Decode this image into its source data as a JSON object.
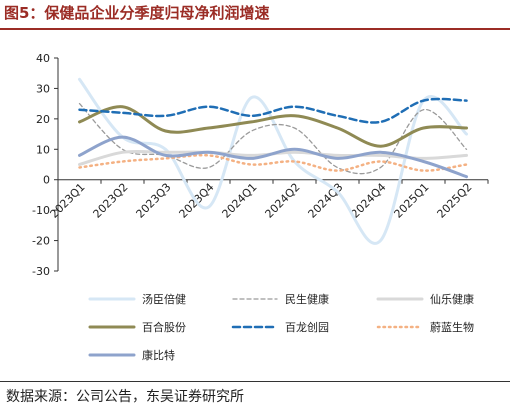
{
  "title": "图5：保健品企业分季度归母净利润增速",
  "source": "数据来源：公司公告，东吴证券研究所",
  "chart_data": {
    "type": "line",
    "title": "图5：保健品企业分季度归母净利润增速",
    "xlabel": "",
    "ylabel": "",
    "ylim": [
      -30,
      40
    ],
    "yticks": [
      -30,
      -20,
      -10,
      0,
      10,
      20,
      30,
      40
    ],
    "grid": false,
    "legend_position": "bottom",
    "categories": [
      "2023Q1",
      "2023Q2",
      "2023Q3",
      "2023Q4",
      "2024Q1",
      "2024Q2",
      "2024Q3",
      "2024Q4",
      "2025Q1",
      "2025Q2"
    ],
    "series": [
      {
        "name": "汤臣倍健",
        "color": "#d6e7f5",
        "style": "solid",
        "width": 3,
        "smooth": true,
        "values": [
          33,
          14,
          10,
          -9,
          27,
          6,
          -4,
          -20,
          26,
          15
        ]
      },
      {
        "name": "民生健康",
        "color": "#9a9a9a",
        "style": "dashed",
        "width": 1.3,
        "smooth": true,
        "values": [
          25,
          10,
          8,
          4,
          16,
          17,
          4,
          4,
          23,
          10
        ]
      },
      {
        "name": "仙乐健康",
        "color": "#d9d9d9",
        "style": "solid",
        "width": 3,
        "smooth": true,
        "values": [
          5,
          9,
          9,
          9,
          8,
          9,
          8,
          8,
          7,
          8
        ]
      },
      {
        "name": "百合股份",
        "color": "#8f8a54",
        "style": "solid",
        "width": 3,
        "smooth": true,
        "values": [
          19,
          24,
          16,
          17,
          19,
          21,
          17,
          11,
          17,
          17
        ]
      },
      {
        "name": "百龙创园",
        "color": "#1f6eb5",
        "style": "dashed",
        "width": 2.5,
        "smooth": true,
        "values": [
          23,
          22,
          21,
          24,
          21,
          24,
          21,
          19,
          26,
          26
        ]
      },
      {
        "name": "蔚蓝生物",
        "color": "#f4b183",
        "style": "dotted",
        "width": 2.5,
        "smooth": true,
        "values": [
          4,
          6,
          7,
          8,
          5,
          6,
          3,
          6,
          3,
          5
        ]
      },
      {
        "name": "康比特",
        "color": "#8ea3cc",
        "style": "solid",
        "width": 3,
        "smooth": true,
        "values": [
          8,
          14,
          8,
          9,
          7,
          10,
          7,
          9,
          6,
          1
        ]
      }
    ]
  }
}
